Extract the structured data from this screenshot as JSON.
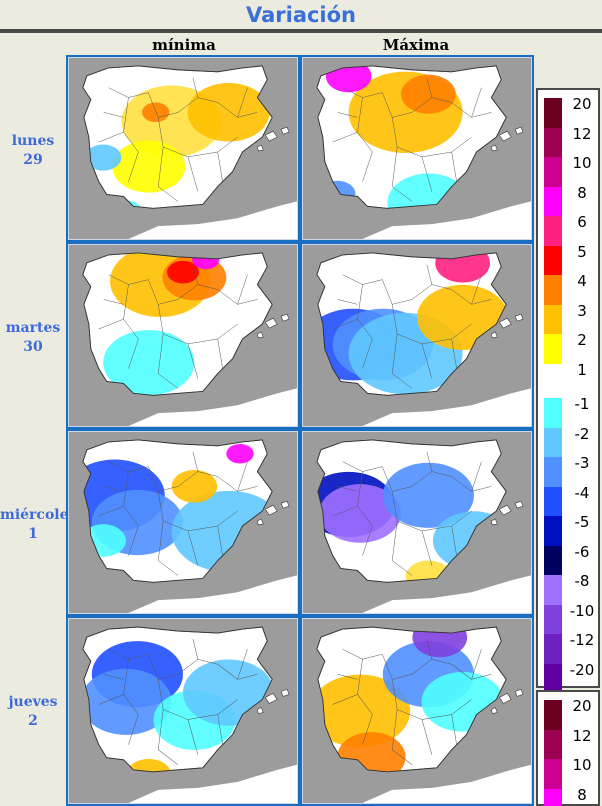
{
  "title": "Variación",
  "columns": [
    "mínima",
    "Máxima"
  ],
  "rows": [
    {
      "day": "lunes",
      "num": "29"
    },
    {
      "day": "martes",
      "num": "30"
    },
    {
      "day": "miércoles",
      "num": "1"
    },
    {
      "day": "jueves",
      "num": "2"
    }
  ],
  "legend_main": {
    "positive": [
      {
        "label": "20",
        "color": "#6b0020"
      },
      {
        "label": "12",
        "color": "#9c0050"
      },
      {
        "label": "10",
        "color": "#cc0090"
      },
      {
        "label": "8",
        "color": "#ff00ff"
      },
      {
        "label": "6",
        "color": "#ff2080"
      },
      {
        "label": "5",
        "color": "#ff0000"
      },
      {
        "label": "4",
        "color": "#ff8000"
      },
      {
        "label": "3",
        "color": "#ffc000"
      },
      {
        "label": "2",
        "color": "#ffff00"
      },
      {
        "label": "1",
        "color": "#ffffff"
      }
    ],
    "negative": [
      {
        "label": "-1",
        "color": "#50ffff"
      },
      {
        "label": "-2",
        "color": "#60c8ff"
      },
      {
        "label": "-3",
        "color": "#5090ff"
      },
      {
        "label": "-4",
        "color": "#2050ff"
      },
      {
        "label": "-5",
        "color": "#0010c0"
      },
      {
        "label": "-6",
        "color": "#000060"
      },
      {
        "label": "-8",
        "color": "#a070ff"
      },
      {
        "label": "-10",
        "color": "#8040e0"
      },
      {
        "label": "-12",
        "color": "#7020c0"
      },
      {
        "label": "-20",
        "color": "#6000a0"
      }
    ]
  },
  "legend_second": [
    {
      "label": "20",
      "color": "#6b0020"
    },
    {
      "label": "12",
      "color": "#9c0050"
    },
    {
      "label": "10",
      "color": "#cc0090"
    },
    {
      "label": "8",
      "color": "#ff00ff"
    }
  ],
  "map_colors": {
    "sea": "#9c9c9c",
    "land": "#ffffff",
    "border": "#555555",
    "frame": "#1a6ec0"
  },
  "maps": [
    {
      "id": "lunes-minima",
      "fills": [
        "#ffe040",
        "#ffc000",
        "#ffff00",
        "#60c8ff",
        "#50ffff",
        "#ff8000"
      ]
    },
    {
      "id": "lunes-maxima",
      "fills": [
        "#ffc000",
        "#ff8000",
        "#ff00ff",
        "#50ffff",
        "#5090ff",
        "#a070ff"
      ]
    },
    {
      "id": "martes-minima",
      "fills": [
        "#ffc000",
        "#ff8000",
        "#ff0000",
        "#50ffff",
        "#ffff00",
        "#ff00ff"
      ]
    },
    {
      "id": "martes-maxima",
      "fills": [
        "#2050ff",
        "#5090ff",
        "#60c8ff",
        "#ffc000",
        "#ff2080",
        "#ffff00"
      ]
    },
    {
      "id": "miercoles-minima",
      "fills": [
        "#2050ff",
        "#5090ff",
        "#50ffff",
        "#60c8ff",
        "#ffc000",
        "#ff00ff"
      ]
    },
    {
      "id": "miercoles-maxima",
      "fills": [
        "#0010c0",
        "#a070ff",
        "#5090ff",
        "#60c8ff",
        "#ffe040",
        "#50ffff"
      ]
    },
    {
      "id": "jueves-minima",
      "fills": [
        "#2050ff",
        "#5090ff",
        "#50ffff",
        "#60c8ff",
        "#ffc000",
        "#ff8000"
      ]
    },
    {
      "id": "jueves-maxima",
      "fills": [
        "#ffc000",
        "#ff8000",
        "#5090ff",
        "#8040e0",
        "#50ffff",
        "#ff00ff"
      ]
    }
  ]
}
